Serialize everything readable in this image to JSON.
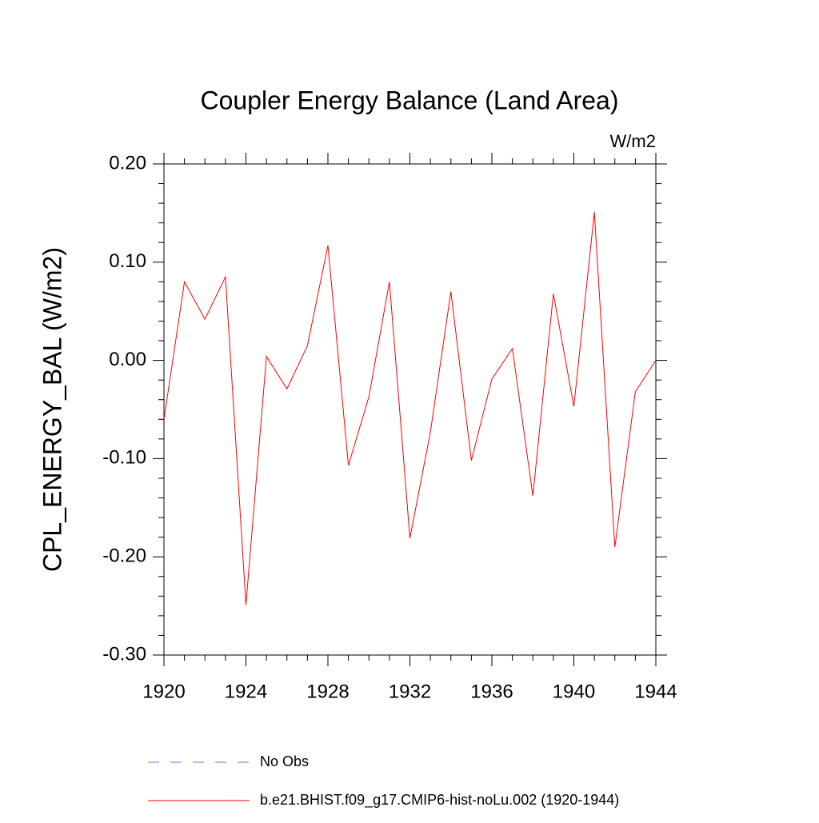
{
  "chart_data": {
    "type": "line",
    "title": "Coupler Energy Balance (Land Area)",
    "units": "W/m2",
    "y_label": "CPL_ENERGY_BAL  (W/m2)",
    "x": [
      1920,
      1921,
      1922,
      1923,
      1924,
      1925,
      1926,
      1927,
      1928,
      1929,
      1930,
      1931,
      1932,
      1933,
      1934,
      1935,
      1936,
      1937,
      1938,
      1939,
      1940,
      1941,
      1942,
      1943,
      1944
    ],
    "series": [
      {
        "name": "b.e21.BHIST.f09_g17.CMIP6-hist-noLu.002 (1920-1944)",
        "color": "#ff0000",
        "values": [
          -0.06,
          0.08,
          0.042,
          0.085,
          -0.249,
          0.004,
          -0.029,
          0.015,
          0.117,
          -0.107,
          -0.037,
          0.08,
          -0.181,
          -0.073,
          0.07,
          -0.102,
          -0.019,
          0.012,
          -0.138,
          0.068,
          -0.047,
          0.151,
          -0.19,
          -0.032,
          0.0
        ]
      }
    ],
    "obs": {
      "name": "No Obs",
      "color": "#7b68ee",
      "dashed": true
    },
    "xlim": [
      1920,
      1944
    ],
    "xticks": [
      1920,
      1924,
      1928,
      1932,
      1936,
      1940,
      1944
    ],
    "x_minor_ticks": [
      1921,
      1922,
      1923,
      1925,
      1926,
      1927,
      1929,
      1930,
      1931,
      1933,
      1934,
      1935,
      1937,
      1938,
      1939,
      1941,
      1942,
      1943
    ],
    "ylim": [
      -0.3,
      0.2
    ],
    "yticks": [
      {
        "value": -0.3,
        "label": "-0.30"
      },
      {
        "value": -0.2,
        "label": "-0.20"
      },
      {
        "value": -0.1,
        "label": "-0.10"
      },
      {
        "value": 0,
        "label": "0.00"
      },
      {
        "value": 0.1,
        "label": "0.10"
      },
      {
        "value": 0.2,
        "label": "0.20"
      }
    ],
    "y_minor_ticks": [
      -0.28,
      -0.26,
      -0.24,
      -0.22,
      -0.18,
      -0.16,
      -0.14,
      -0.12,
      -0.08,
      -0.06,
      -0.04,
      -0.02,
      0.02,
      0.04,
      0.06,
      0.08,
      0.12,
      0.14,
      0.16,
      0.18
    ]
  }
}
